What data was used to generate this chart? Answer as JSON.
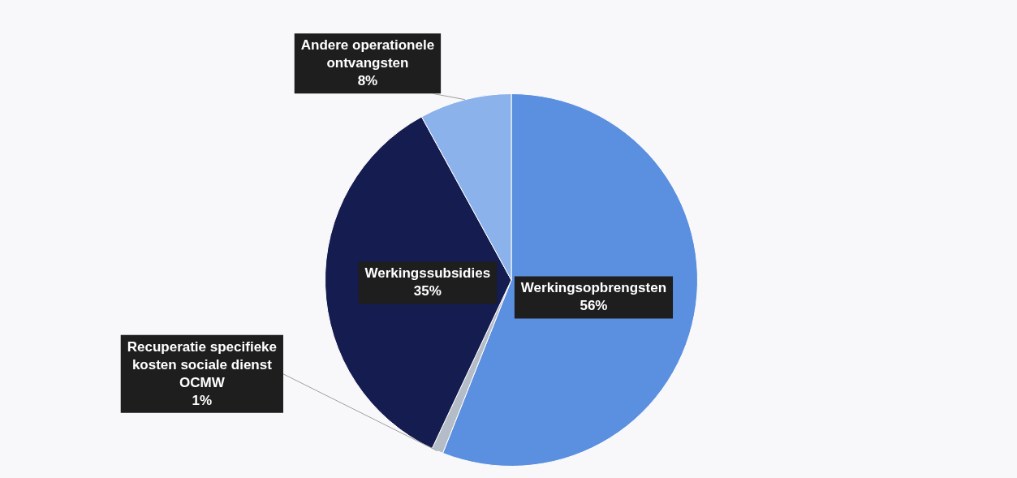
{
  "chart_data": {
    "type": "pie",
    "categories": [
      "Werkingsopbrengsten",
      "Recuperatie specifieke kosten sociale dienst OCMW",
      "Werkingssubsidies",
      "Andere operationele ontvangsten"
    ],
    "values": [
      56,
      1,
      35,
      8
    ],
    "colors": [
      "#5b8fdf",
      "#b4bcc8",
      "#141c50",
      "#8cb2ec"
    ],
    "value_labels": [
      "56%",
      "1%",
      "35%",
      "8%"
    ],
    "legend": false
  }
}
